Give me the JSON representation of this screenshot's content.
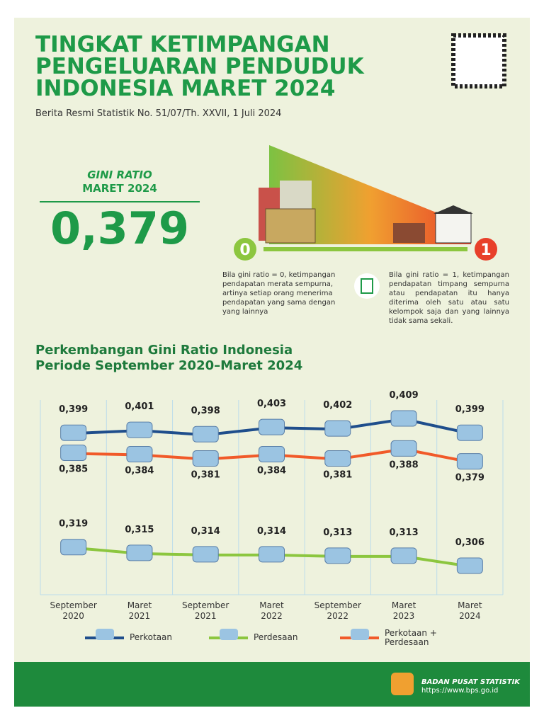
{
  "header": {
    "title_lines": [
      "TINGKAT KETIMPANGAN",
      "PENGELUARAN PENDUDUK",
      "INDONESIA MARET 2024"
    ],
    "subtitle": "Berita Resmi Statistik No. 51/07/Th. XXVII, 1 Juli 2024"
  },
  "gini": {
    "label": "GINI RATIO",
    "period": "MARET 2024",
    "value": "0,379",
    "scale_low": "0",
    "scale_high": "1",
    "note_low": "Bila gini ratio = 0, ketimpangan pendapatan merata sempurna, artinya setiap orang menerima pendapatan yang sama dengan yang lainnya",
    "note_high": "Bila gini ratio = 1, ketimpangan pendapatan timpang sempurna atau pendapatan itu hanya diterima oleh satu atau satu kelompok saja dan yang lainnya tidak sama sekali."
  },
  "chart_data": {
    "type": "line",
    "title": "Perkembangan Gini Ratio Indonesia",
    "subtitle": "Periode September 2020–Maret 2024",
    "categories": [
      "September 2020",
      "Maret 2021",
      "September 2021",
      "Maret 2022",
      "September 2022",
      "Maret 2023",
      "Maret 2024"
    ],
    "series": [
      {
        "name": "Perkotaan",
        "color": "#1f4e8c",
        "values": [
          0.399,
          0.401,
          0.398,
          0.403,
          0.402,
          0.409,
          0.399
        ],
        "value_labels": [
          "0,399",
          "0,401",
          "0,398",
          "0,403",
          "0,402",
          "0,409",
          "0,399"
        ]
      },
      {
        "name": "Perdesaan",
        "color": "#8cc63f",
        "values": [
          0.319,
          0.315,
          0.314,
          0.314,
          0.313,
          0.313,
          0.306
        ],
        "value_labels": [
          "0,319",
          "0,315",
          "0,314",
          "0,314",
          "0,313",
          "0,313",
          "0,306"
        ]
      },
      {
        "name": "Perkotaan + Perdesaan",
        "color": "#f15a29",
        "values": [
          0.385,
          0.384,
          0.381,
          0.384,
          0.381,
          0.388,
          0.379
        ],
        "value_labels": [
          "0,385",
          "0,384",
          "0,381",
          "0,384",
          "0,381",
          "0,388",
          "0,379"
        ]
      }
    ]
  },
  "footer": {
    "org": "BADAN PUSAT STATISTIK",
    "url": "https://www.bps.go.id"
  }
}
